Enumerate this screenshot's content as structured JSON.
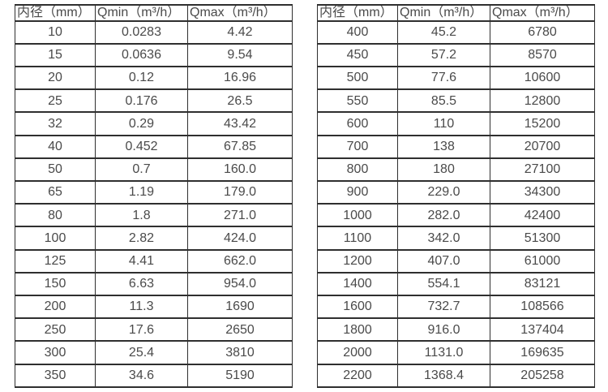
{
  "style": {
    "background": "#ffffff",
    "text_color": "#4a4a4a",
    "border_color": "#2f2f2f"
  },
  "chart_data": [
    {
      "type": "table",
      "columns": [
        "内径（mm）",
        "Qmin（m³/h）",
        "Qmax（m³/h）"
      ],
      "rows": [
        [
          "10",
          "0.0283",
          "4.42"
        ],
        [
          "15",
          "0.0636",
          "9.54"
        ],
        [
          "20",
          "0.12",
          "16.96"
        ],
        [
          "25",
          "0.176",
          "26.5"
        ],
        [
          "32",
          "0.29",
          "43.42"
        ],
        [
          "40",
          "0.452",
          "67.85"
        ],
        [
          "50",
          "0.7",
          "160.0"
        ],
        [
          "65",
          "1.19",
          "179.0"
        ],
        [
          "80",
          "1.8",
          "271.0"
        ],
        [
          "100",
          "2.82",
          "424.0"
        ],
        [
          "125",
          "4.41",
          "662.0"
        ],
        [
          "150",
          "6.63",
          "954.0"
        ],
        [
          "200",
          "11.3",
          "1690"
        ],
        [
          "250",
          "17.6",
          "2650"
        ],
        [
          "300",
          "25.4",
          "3810"
        ],
        [
          "350",
          "34.6",
          "5190"
        ]
      ]
    },
    {
      "type": "table",
      "columns": [
        "内径（mm）",
        "Qmin（m³/h）",
        "Qmax（m³/h）"
      ],
      "rows": [
        [
          "400",
          "45.2",
          "6780"
        ],
        [
          "450",
          "57.2",
          "8570"
        ],
        [
          "500",
          "77.6",
          "10600"
        ],
        [
          "550",
          "85.5",
          "12800"
        ],
        [
          "600",
          "110",
          "15200"
        ],
        [
          "700",
          "138",
          "20700"
        ],
        [
          "800",
          "180",
          "27100"
        ],
        [
          "900",
          "229.0",
          "34300"
        ],
        [
          "1000",
          "282.0",
          "42400"
        ],
        [
          "1100",
          "342.0",
          "51300"
        ],
        [
          "1200",
          "407.0",
          "61000"
        ],
        [
          "1400",
          "554.1",
          "83121"
        ],
        [
          "1600",
          "732.7",
          "108566"
        ],
        [
          "1800",
          "916.0",
          "137404"
        ],
        [
          "2000",
          "1131.0",
          "169635"
        ],
        [
          "2200",
          "1368.4",
          "205258"
        ]
      ]
    }
  ]
}
